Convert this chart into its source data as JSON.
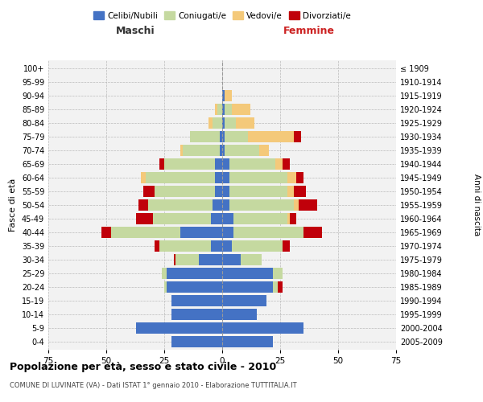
{
  "age_groups": [
    "0-4",
    "5-9",
    "10-14",
    "15-19",
    "20-24",
    "25-29",
    "30-34",
    "35-39",
    "40-44",
    "45-49",
    "50-54",
    "55-59",
    "60-64",
    "65-69",
    "70-74",
    "75-79",
    "80-84",
    "85-89",
    "90-94",
    "95-99",
    "100+"
  ],
  "birth_years": [
    "2005-2009",
    "2000-2004",
    "1995-1999",
    "1990-1994",
    "1985-1989",
    "1980-1984",
    "1975-1979",
    "1970-1974",
    "1965-1969",
    "1960-1964",
    "1955-1959",
    "1950-1954",
    "1945-1949",
    "1940-1944",
    "1935-1939",
    "1930-1934",
    "1925-1929",
    "1920-1924",
    "1915-1919",
    "1910-1914",
    "≤ 1909"
  ],
  "colors": {
    "celibi": "#4472C4",
    "coniugati": "#C5D9A0",
    "vedovi": "#F4C97A",
    "divorziati": "#C0000A"
  },
  "maschi": {
    "celibi": [
      22,
      37,
      22,
      22,
      24,
      24,
      10,
      5,
      18,
      5,
      4,
      3,
      3,
      3,
      1,
      1,
      0,
      0,
      0,
      0,
      0
    ],
    "coniugati": [
      0,
      0,
      0,
      0,
      1,
      2,
      10,
      22,
      30,
      25,
      28,
      26,
      30,
      22,
      16,
      13,
      4,
      2,
      0,
      0,
      0
    ],
    "vedovi": [
      0,
      0,
      0,
      0,
      0,
      0,
      0,
      0,
      0,
      0,
      0,
      0,
      2,
      0,
      1,
      0,
      2,
      1,
      0,
      0,
      0
    ],
    "divorziati": [
      0,
      0,
      0,
      0,
      0,
      0,
      1,
      2,
      4,
      7,
      4,
      5,
      0,
      2,
      0,
      0,
      0,
      0,
      0,
      0,
      0
    ]
  },
  "femmine": {
    "nubili": [
      22,
      35,
      15,
      19,
      22,
      22,
      8,
      4,
      5,
      5,
      3,
      3,
      3,
      3,
      1,
      1,
      1,
      1,
      1,
      0,
      0
    ],
    "coniugate": [
      0,
      0,
      0,
      0,
      2,
      4,
      9,
      22,
      30,
      23,
      28,
      25,
      25,
      20,
      15,
      10,
      5,
      3,
      0,
      0,
      0
    ],
    "vedove": [
      0,
      0,
      0,
      0,
      0,
      0,
      0,
      0,
      0,
      1,
      2,
      3,
      4,
      3,
      4,
      20,
      8,
      8,
      3,
      0,
      0
    ],
    "divorziate": [
      0,
      0,
      0,
      0,
      2,
      0,
      0,
      3,
      8,
      3,
      8,
      5,
      3,
      3,
      0,
      3,
      0,
      0,
      0,
      0,
      0
    ]
  },
  "xlim": 75,
  "title": "Popolazione per età, sesso e stato civile - 2010",
  "subtitle": "COMUNE DI LUVINATE (VA) - Dati ISTAT 1° gennaio 2010 - Elaborazione TUTTITALIA.IT",
  "xlabel_left": "Maschi",
  "xlabel_right": "Femmine",
  "ylabel_left": "Fasce di età",
  "ylabel_right": "Anni di nascita",
  "legend_labels": [
    "Celibi/Nubili",
    "Coniugati/e",
    "Vedovi/e",
    "Divorziati/e"
  ],
  "bg_color": "#FFFFFF",
  "grid_color": "#CCCCCC"
}
